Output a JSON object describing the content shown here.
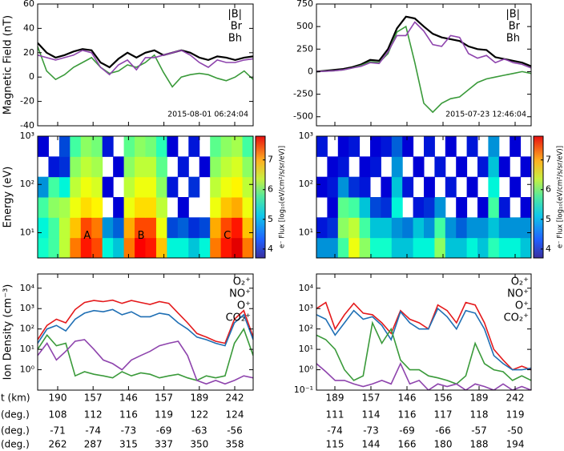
{
  "chart_data": [
    {
      "type": "line",
      "ylabel": "Magnetic Field (nT)",
      "timestamp": "2015-08-01 06:24:04",
      "ylim": [
        -40,
        60
      ],
      "yticks": [
        -40,
        -20,
        0,
        20,
        40,
        60
      ],
      "series": [
        {
          "name": "|B|",
          "color": "#000000",
          "values": [
            28,
            20,
            16,
            18,
            21,
            23,
            22,
            12,
            8,
            15,
            20,
            16,
            20,
            22,
            18,
            20,
            22,
            20,
            16,
            14,
            17,
            16,
            14,
            16,
            17
          ]
        },
        {
          "name": "Br",
          "color": "#3a9a3a",
          "values": [
            25,
            5,
            -2,
            2,
            8,
            12,
            16,
            8,
            3,
            5,
            10,
            8,
            12,
            18,
            4,
            -8,
            0,
            2,
            3,
            2,
            -1,
            -3,
            0,
            5,
            -2
          ]
        },
        {
          "name": "Bh",
          "color": "#8e44ad",
          "values": [
            18,
            16,
            14,
            16,
            18,
            22,
            20,
            8,
            2,
            10,
            14,
            6,
            16,
            16,
            18,
            20,
            22,
            18,
            12,
            8,
            14,
            12,
            12,
            14,
            15
          ]
        }
      ]
    },
    {
      "type": "line",
      "timestamp": "2015-07-23 12:46:04",
      "ylim": [
        -600,
        750
      ],
      "yticks": [
        -500,
        -250,
        0,
        250,
        500,
        750
      ],
      "series": [
        {
          "name": "|B|",
          "color": "#000000",
          "values": [
            0,
            10,
            20,
            30,
            50,
            80,
            130,
            120,
            250,
            480,
            610,
            590,
            500,
            420,
            380,
            360,
            340,
            280,
            250,
            240,
            160,
            140,
            120,
            100,
            60
          ]
        },
        {
          "name": "Br",
          "color": "#3a9a3a",
          "values": [
            0,
            5,
            10,
            20,
            40,
            70,
            110,
            100,
            200,
            440,
            500,
            100,
            -350,
            -450,
            -350,
            -300,
            -280,
            -200,
            -120,
            -80,
            -60,
            -40,
            -20,
            0,
            -20
          ]
        },
        {
          "name": "Bh",
          "color": "#8e44ad",
          "values": [
            0,
            5,
            10,
            20,
            40,
            60,
            100,
            90,
            220,
            400,
            400,
            550,
            450,
            300,
            280,
            400,
            380,
            200,
            150,
            180,
            100,
            140,
            100,
            80,
            40
          ]
        }
      ]
    },
    {
      "type": "heatmap",
      "ylabel": "Energy (eV)",
      "log_scale": true,
      "ylim": [
        3,
        1000
      ],
      "yticks": [
        {
          "value": 10,
          "label": "10¹"
        },
        {
          "value": 100,
          "label": "10²"
        },
        {
          "value": 1000,
          "label": "10³"
        }
      ],
      "zlim": [
        3.7,
        7.8
      ],
      "zticks": [
        4,
        5,
        6,
        7
      ],
      "colorbar_label": "e⁻ Flux [log₁₀(eV/cm²/s/sr/eV)]",
      "annotations": [
        "A",
        "B",
        "C"
      ],
      "values": [
        [
          5.3,
          5.5,
          6,
          6.8,
          7.2,
          7,
          5.2,
          5,
          6.8,
          7.3,
          7.2,
          6.5,
          5.2,
          5.2,
          5,
          5.2,
          6.8,
          7.2,
          7.4,
          6.8
        ],
        [
          5.2,
          5.5,
          6,
          6.5,
          7,
          6.8,
          4.8,
          4.6,
          6.6,
          7,
          7,
          6.2,
          4.5,
          4.6,
          4.4,
          4.5,
          6.6,
          7,
          7.2,
          6.5
        ],
        [
          5.5,
          5.8,
          5.9,
          6.2,
          6.4,
          6.3,
          null,
          4.2,
          6.2,
          6.4,
          6.4,
          6,
          null,
          4.2,
          null,
          null,
          6.2,
          6.5,
          6.6,
          6.2
        ],
        [
          4.8,
          5.5,
          5.2,
          6,
          6.2,
          6.1,
          4.2,
          null,
          6,
          6.2,
          6.2,
          5.8,
          4.3,
          null,
          4.4,
          null,
          6,
          6.2,
          6.3,
          6
        ],
        [
          null,
          4.3,
          4.4,
          5.8,
          6,
          5.9,
          null,
          4.2,
          5.8,
          6,
          6,
          5.6,
          null,
          4.3,
          null,
          4.2,
          5.8,
          6,
          6.1,
          5.8
        ],
        [
          4.2,
          null,
          4.5,
          5.5,
          5.8,
          5.7,
          4.3,
          null,
          5.6,
          5.8,
          5.7,
          5.4,
          4.2,
          null,
          4.3,
          null,
          5.6,
          5.8,
          5.9,
          5.5
        ]
      ]
    },
    {
      "type": "heatmap",
      "log_scale": true,
      "ylim": [
        3,
        1000
      ],
      "yticks": [
        {
          "value": 10,
          "label": "10¹"
        },
        {
          "value": 100,
          "label": "10²"
        },
        {
          "value": 1000,
          "label": "10³"
        }
      ],
      "zlim": [
        3.7,
        7.8
      ],
      "zticks": [
        4,
        5,
        6,
        7
      ],
      "colorbar_label": "e⁻ Flux [log₁₀(eV/cm²/s/sr/eV)]",
      "values": [
        [
          4.8,
          4.8,
          5.5,
          6.2,
          5.8,
          5.3,
          5.3,
          5,
          5,
          5.2,
          5.2,
          5.8,
          5,
          5,
          5.2,
          5,
          5.4,
          5.2,
          5.2,
          5
        ],
        [
          4.3,
          4.4,
          5.8,
          6,
          5.5,
          5,
          5,
          4.8,
          4.7,
          5,
          4.8,
          5.5,
          4.8,
          4.6,
          4.8,
          4.8,
          5,
          4.8,
          4.8,
          4.8
        ],
        [
          null,
          4.2,
          5.6,
          5.5,
          5,
          4.5,
          4.4,
          5.2,
          null,
          4.3,
          4.4,
          4.8,
          null,
          4.2,
          null,
          4.2,
          5.5,
          4.3,
          null,
          4.2
        ],
        [
          4.2,
          4.3,
          4.8,
          4.4,
          4.3,
          null,
          4.2,
          5,
          4.3,
          null,
          4.2,
          null,
          4.3,
          null,
          4.2,
          null,
          5.2,
          null,
          4.2,
          null
        ],
        [
          null,
          4.2,
          4.3,
          null,
          4.2,
          4.3,
          null,
          4.8,
          null,
          4.2,
          null,
          4.3,
          null,
          4.2,
          null,
          4.3,
          5,
          4.2,
          null,
          4.2
        ],
        [
          4.3,
          null,
          4.2,
          4.3,
          null,
          4.2,
          4.3,
          4.6,
          4.2,
          null,
          4.3,
          null,
          4.2,
          null,
          4.3,
          null,
          4.8,
          null,
          4.2,
          null
        ]
      ]
    },
    {
      "type": "line",
      "ylabel": "Ion Density (cm⁻³)",
      "log_scale": true,
      "ylim": [
        0.1,
        50000
      ],
      "yticks": [
        {
          "value": 1,
          "label": "10⁰"
        },
        {
          "value": 10,
          "label": "10¹"
        },
        {
          "value": 100,
          "label": "10²"
        },
        {
          "value": 1000,
          "label": "10³"
        },
        {
          "value": 10000,
          "label": "10⁴"
        }
      ],
      "series": [
        {
          "name": "O₂⁺",
          "color": "#e41a1c",
          "values": [
            30,
            150,
            300,
            200,
            900,
            2000,
            2500,
            2200,
            2600,
            1800,
            2500,
            2000,
            1600,
            2200,
            1800,
            600,
            200,
            60,
            40,
            25,
            20,
            300,
            800,
            40
          ]
        },
        {
          "name": "NO⁺",
          "color": "#1f6fb4",
          "values": [
            20,
            100,
            150,
            80,
            300,
            600,
            800,
            700,
            900,
            500,
            700,
            400,
            400,
            600,
            500,
            200,
            100,
            40,
            30,
            20,
            15,
            200,
            500,
            30
          ]
        },
        {
          "name": "O⁺",
          "color": "#3a9a3a",
          "values": [
            10,
            50,
            15,
            20,
            0.5,
            0.8,
            0.6,
            0.5,
            0.4,
            0.8,
            0.5,
            0.7,
            0.6,
            0.4,
            0.5,
            0.6,
            0.4,
            0.3,
            0.5,
            0.4,
            0.5,
            20,
            100,
            5
          ]
        },
        {
          "name": "CO₂⁺",
          "color": "#8e44ad",
          "values": [
            5,
            20,
            3,
            8,
            25,
            30,
            10,
            3,
            2,
            1,
            3,
            5,
            8,
            15,
            20,
            25,
            5,
            0.3,
            0.2,
            0.3,
            0.2,
            0.3,
            0.5,
            0.4
          ]
        }
      ]
    },
    {
      "type": "line",
      "log_scale": true,
      "ylim": [
        0.1,
        50000
      ],
      "yticks": [
        {
          "value": 0.1,
          "label": "10⁻¹"
        },
        {
          "value": 1,
          "label": "10⁰"
        },
        {
          "value": 10,
          "label": "10¹"
        },
        {
          "value": 100,
          "label": "10²"
        },
        {
          "value": 1000,
          "label": "10³"
        },
        {
          "value": 10000,
          "label": "10⁴"
        }
      ],
      "series": [
        {
          "name": "O₂⁺",
          "color": "#e41a1c",
          "values": [
            1000,
            2000,
            100,
            500,
            1800,
            600,
            500,
            200,
            60,
            800,
            300,
            200,
            100,
            1500,
            800,
            200,
            2000,
            1500,
            200,
            10,
            3,
            1,
            1.5,
            1
          ]
        },
        {
          "name": "NO⁺",
          "color": "#1f6fb4",
          "values": [
            500,
            300,
            50,
            200,
            800,
            300,
            400,
            150,
            30,
            700,
            200,
            100,
            100,
            1000,
            400,
            100,
            800,
            600,
            100,
            5,
            2,
            1,
            1,
            1.2
          ]
        },
        {
          "name": "O⁺",
          "color": "#3a9a3a",
          "values": [
            50,
            30,
            10,
            1,
            0.3,
            0.5,
            200,
            20,
            100,
            3,
            1,
            1,
            0.5,
            0.4,
            0.3,
            0.2,
            0.5,
            20,
            2,
            1,
            0.8,
            0.3,
            0.5,
            0.3
          ]
        },
        {
          "name": "CO₂⁺",
          "color": "#8e44ad",
          "values": [
            2,
            0.8,
            0.3,
            0.3,
            0.2,
            0.15,
            0.2,
            0.3,
            0.2,
            2,
            0.2,
            0.3,
            0.1,
            0.2,
            0.15,
            0.2,
            0.1,
            0.2,
            0.15,
            0.1,
            0.2,
            0.1,
            0.15,
            0.1
          ]
        }
      ]
    }
  ],
  "table": {
    "row_labels": [
      "t (km)",
      "(deg.)",
      "(deg.)",
      "(deg.)"
    ],
    "left": [
      [
        190,
        157,
        146,
        157,
        189,
        242
      ],
      [
        108,
        112,
        116,
        119,
        122,
        124
      ],
      [
        -71,
        -74,
        -73,
        -69,
        -63,
        -56
      ],
      [
        262,
        287,
        315,
        337,
        350,
        358
      ]
    ],
    "right": [
      [
        189,
        157,
        146,
        156,
        189,
        242
      ],
      [
        111,
        114,
        116,
        117,
        118,
        119
      ],
      [
        -74,
        -73,
        -69,
        -66,
        -57,
        -50
      ],
      [
        115,
        144,
        166,
        180,
        188,
        194
      ]
    ]
  }
}
